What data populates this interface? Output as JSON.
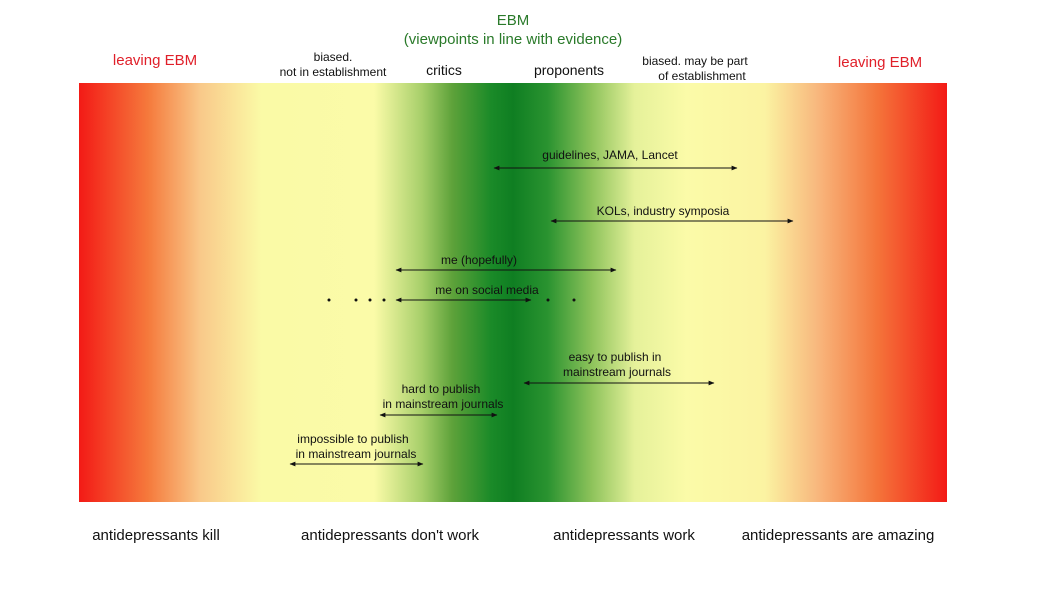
{
  "header": {
    "ebm_title": "EBM",
    "ebm_subtitle": "(viewpoints in line with evidence)",
    "leaving_left": "leaving EBM",
    "leaving_right": "leaving EBM",
    "biased_left_line1": "biased.",
    "biased_left_line2": "not in establishment",
    "critics": "critics",
    "proponents": "proponents",
    "biased_right_line1": "biased. may be part",
    "biased_right_line2": "of establishment"
  },
  "arrows": {
    "guidelines": "guidelines, JAMA, Lancet",
    "kols": "KOLs, industry symposia",
    "me_hopefully": "me (hopefully)",
    "me_social": "me on social media",
    "easy_line1": "easy to publish in",
    "easy_line2": "mainstream journals",
    "hard_line1": "hard to publish",
    "hard_line2": "in mainstream journals",
    "impossible_line1": "impossible to publish",
    "impossible_line2": "in mainstream journals"
  },
  "bottom_labels": {
    "kill": "antidepressants kill",
    "dont_work": "antidepressants don't work",
    "work": "antidepressants work",
    "amazing": "antidepressants are amazing"
  },
  "colors": {
    "ebm_green": "#2a7a2a",
    "leaving_red": "#e0202a",
    "extreme_red": "#f31a16",
    "center_green": "#0f7e22",
    "pale_yellow": "#fbfba8"
  }
}
